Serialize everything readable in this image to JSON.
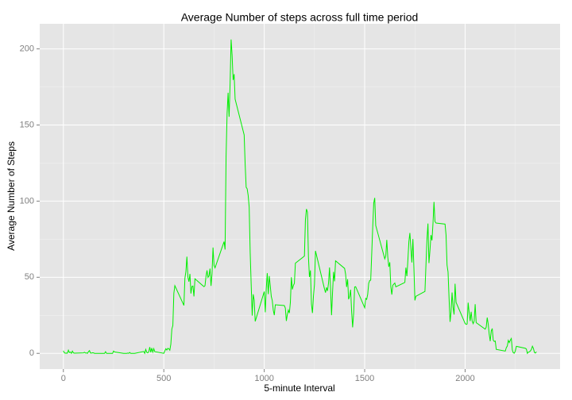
{
  "chart_data": {
    "type": "line",
    "title": "Average Number of steps across full time period",
    "x_label": "5-minute Interval",
    "y_label": "Average Number of Steps",
    "color": "#00ee00",
    "grid": true,
    "minor_grid": true,
    "xlim": [
      -117.75,
      2472.75
    ],
    "ylim": [
      -10.31,
      216.48
    ],
    "xticks": [
      0,
      500,
      1000,
      1500,
      2000
    ],
    "yticks": [
      0,
      50,
      100,
      150,
      200
    ],
    "x": [
      0,
      5,
      10,
      15,
      20,
      25,
      30,
      35,
      40,
      45,
      50,
      55,
      100,
      105,
      110,
      115,
      120,
      125,
      130,
      135,
      140,
      145,
      150,
      155,
      200,
      205,
      210,
      215,
      220,
      225,
      230,
      235,
      240,
      245,
      250,
      255,
      300,
      305,
      310,
      315,
      320,
      325,
      330,
      335,
      340,
      345,
      350,
      355,
      400,
      405,
      410,
      415,
      420,
      425,
      430,
      435,
      440,
      445,
      450,
      455,
      500,
      505,
      510,
      515,
      520,
      525,
      530,
      535,
      540,
      545,
      550,
      555,
      600,
      605,
      610,
      615,
      620,
      625,
      630,
      635,
      640,
      645,
      650,
      655,
      700,
      705,
      710,
      715,
      720,
      725,
      730,
      735,
      740,
      745,
      750,
      755,
      800,
      805,
      810,
      815,
      820,
      825,
      830,
      835,
      840,
      845,
      850,
      855,
      900,
      905,
      910,
      915,
      920,
      925,
      930,
      935,
      940,
      945,
      950,
      955,
      1000,
      1005,
      1010,
      1015,
      1020,
      1025,
      1030,
      1035,
      1040,
      1045,
      1050,
      1055,
      1100,
      1105,
      1110,
      1115,
      1120,
      1125,
      1130,
      1135,
      1140,
      1145,
      1150,
      1155,
      1200,
      1205,
      1210,
      1215,
      1220,
      1225,
      1230,
      1235,
      1240,
      1245,
      1250,
      1255,
      1300,
      1305,
      1310,
      1315,
      1320,
      1325,
      1330,
      1335,
      1340,
      1345,
      1350,
      1355,
      1400,
      1405,
      1410,
      1415,
      1420,
      1425,
      1430,
      1435,
      1440,
      1445,
      1450,
      1455,
      1500,
      1505,
      1510,
      1515,
      1520,
      1525,
      1530,
      1535,
      1540,
      1545,
      1550,
      1555,
      1600,
      1605,
      1610,
      1615,
      1620,
      1625,
      1630,
      1635,
      1640,
      1645,
      1650,
      1655,
      1700,
      1705,
      1710,
      1715,
      1720,
      1725,
      1730,
      1735,
      1740,
      1745,
      1750,
      1755,
      1800,
      1805,
      1810,
      1815,
      1820,
      1825,
      1830,
      1835,
      1840,
      1845,
      1850,
      1855,
      1900,
      1905,
      1910,
      1915,
      1920,
      1925,
      1930,
      1935,
      1940,
      1945,
      1950,
      1955,
      2000,
      2005,
      2010,
      2015,
      2020,
      2025,
      2030,
      2035,
      2040,
      2045,
      2050,
      2055,
      2100,
      2105,
      2110,
      2115,
      2120,
      2125,
      2130,
      2135,
      2140,
      2145,
      2150,
      2155,
      2200,
      2205,
      2210,
      2215,
      2220,
      2225,
      2230,
      2235,
      2240,
      2245,
      2250,
      2255,
      2300,
      2305,
      2310,
      2315,
      2320,
      2325,
      2330,
      2335,
      2340,
      2345,
      2350,
      2355
    ],
    "values": [
      1.7,
      0.3,
      0.1,
      0.2,
      0.1,
      2.1,
      0.5,
      0.9,
      0,
      1.5,
      0.3,
      0.1,
      0.3,
      0.7,
      0.2,
      0.3,
      0,
      1.1,
      1.8,
      0.2,
      0.2,
      0.4,
      0.3,
      0,
      0,
      0,
      1.1,
      0,
      0,
      0,
      0,
      0,
      0,
      0,
      1.5,
      0.9,
      0,
      0,
      0,
      0,
      0.2,
      0,
      0.6,
      0,
      0,
      0,
      0,
      0,
      1.2,
      0,
      2.6,
      0.7,
      0.3,
      1,
      4.1,
      0.7,
      3.5,
      0.8,
      3.1,
      1.1,
      0,
      1.6,
      3,
      2.2,
      3.3,
      3,
      2.1,
      6.1,
      16,
      18.3,
      39.5,
      44.5,
      31.5,
      49.3,
      53.8,
      63.5,
      50,
      47.1,
      52.2,
      39.3,
      44,
      44.2,
      37.4,
      49,
      43.8,
      44.4,
      50.5,
      54.5,
      49.9,
      51,
      55.7,
      44.3,
      52.3,
      69.5,
      57.8,
      56.2,
      73.4,
      68.2,
      129.4,
      157.5,
      171.2,
      155.4,
      177.3,
      206.2,
      195.9,
      179.6,
      183.4,
      167,
      143.5,
      124,
      109.1,
      108.1,
      103.7,
      96,
      66.2,
      45.2,
      24.8,
      38.8,
      35,
      21,
      40.6,
      27,
      42.4,
      52.7,
      38.9,
      50.8,
      44.3,
      37.4,
      34.7,
      28.3,
      25.1,
      31.9,
      31.4,
      29.7,
      21.3,
      25.5,
      28.4,
      26.5,
      33.4,
      50,
      42,
      44.6,
      46,
      59.2,
      63.9,
      87.7,
      94.8,
      92.8,
      63.4,
      50.2,
      54.5,
      32.4,
      26.5,
      37.7,
      45.1,
      67.3,
      42.3,
      39.9,
      43.3,
      41,
      46.2,
      56.4,
      42.8,
      25.1,
      40,
      53.5,
      47.3,
      60.8,
      55.8,
      52,
      43.6,
      48.7,
      35.5,
      37.5,
      41.8,
      27.5,
      17.1,
      26.2,
      43.6,
      43.8,
      30,
      36.1,
      35.5,
      38.8,
      46,
      47.8,
      48.1,
      65.3,
      82.9,
      98.7,
      102.1,
      84,
      62.1,
      64.1,
      74.5,
      63.2,
      56.9,
      59.8,
      43.9,
      38.6,
      44.7,
      45.5,
      46.2,
      43.7,
      46.6,
      56.3,
      50.7,
      61.2,
      73.4,
      79.1,
      68.9,
      59.7,
      75.1,
      56.5,
      34.8,
      37.5,
      40.7,
      58,
      74.7,
      85.3,
      59.3,
      67.8,
      77.7,
      74.2,
      85.3,
      99.5,
      86.6,
      85.6,
      84.9,
      77.8,
      58,
      53.4,
      36.3,
      20.7,
      27.4,
      40,
      30.2,
      25.5,
      45.7,
      33.5,
      19.6,
      19,
      19.3,
      33.3,
      26.8,
      21.2,
      27.3,
      21.3,
      19.5,
      21.3,
      32.3,
      20.2,
      15.9,
      17.2,
      23.5,
      19.2,
      12.5,
      8,
      14.7,
      16.3,
      8.7,
      7.8,
      8.1,
      2.6,
      1.5,
      3.7,
      4.8,
      8.5,
      7.1,
      8.7,
      9.8,
      2.2,
      0.3,
      0.1,
      1.6,
      4.6,
      3.3,
      2.8,
      0,
      0.8,
      1,
      1.6,
      2.6,
      4.7,
      3.3,
      0.6,
      0.2,
      1.1
    ]
  }
}
